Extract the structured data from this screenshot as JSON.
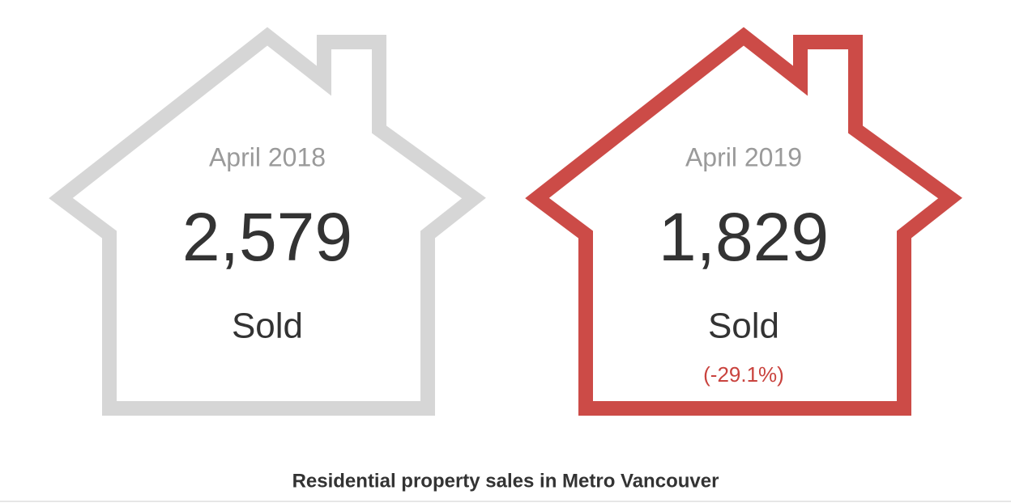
{
  "cards": [
    {
      "period": "April 2018",
      "value": "2,579",
      "unit": "Sold"
    },
    {
      "period": "April 2019",
      "value": "1,829",
      "unit": "Sold",
      "change": "(-29.1%)"
    }
  ],
  "caption": "Residential property sales in Metro Vancouver"
}
